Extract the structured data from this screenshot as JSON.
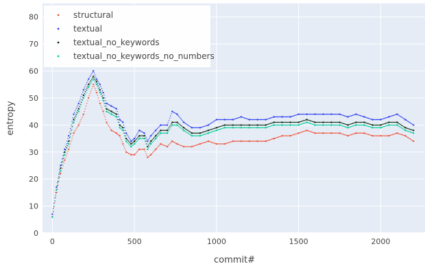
{
  "chart_data": {
    "type": "scatter",
    "xlabel": "commit#",
    "ylabel": "entropy",
    "xlim": [
      -60,
      2270
    ],
    "ylim": [
      0,
      85
    ],
    "x_ticks": [
      0,
      500,
      1000,
      1500,
      2000
    ],
    "y_ticks": [
      0,
      10,
      20,
      30,
      40,
      50,
      60,
      70,
      80
    ],
    "grid": true,
    "legend_position": "top-left",
    "background_color": "#e5ecf6",
    "series": [
      {
        "name": "structural",
        "color": "#ef553b",
        "x": [
          0,
          25,
          50,
          75,
          100,
          130,
          160,
          190,
          220,
          250,
          270,
          290,
          310,
          330,
          360,
          390,
          410,
          430,
          450,
          480,
          500,
          530,
          560,
          580,
          600,
          630,
          660,
          700,
          730,
          760,
          800,
          850,
          900,
          950,
          1000,
          1050,
          1100,
          1150,
          1200,
          1250,
          1300,
          1350,
          1400,
          1450,
          1500,
          1550,
          1600,
          1650,
          1700,
          1750,
          1800,
          1850,
          1900,
          1950,
          2000,
          2050,
          2100,
          2150,
          2200
        ],
        "values": [
          6,
          15,
          22,
          27,
          31,
          37,
          40,
          44,
          50,
          55,
          52,
          48,
          45,
          41,
          38,
          37,
          36,
          33,
          30,
          29,
          29,
          31,
          31,
          28,
          29,
          31,
          33,
          32,
          34,
          33,
          32,
          32,
          33,
          34,
          33,
          33,
          34,
          34,
          34,
          34,
          34,
          35,
          36,
          36,
          37,
          38,
          37,
          37,
          37,
          37,
          36,
          37,
          37,
          36,
          36,
          36,
          37,
          36,
          34
        ]
      },
      {
        "name": "textual",
        "color": "#3040ef",
        "x": [
          0,
          25,
          50,
          75,
          100,
          130,
          160,
          190,
          220,
          250,
          270,
          290,
          310,
          330,
          360,
          390,
          410,
          430,
          450,
          480,
          500,
          530,
          560,
          580,
          600,
          630,
          660,
          700,
          730,
          760,
          800,
          850,
          900,
          950,
          1000,
          1050,
          1100,
          1150,
          1200,
          1250,
          1300,
          1350,
          1400,
          1450,
          1500,
          1550,
          1600,
          1650,
          1700,
          1750,
          1800,
          1850,
          1900,
          1950,
          2000,
          2050,
          2100,
          2150,
          2200
        ],
        "values": [
          7,
          17,
          25,
          31,
          36,
          44,
          48,
          53,
          57,
          60,
          57,
          55,
          52,
          48,
          47,
          46,
          42,
          41,
          37,
          34,
          35,
          38,
          37,
          34,
          36,
          38,
          40,
          40,
          45,
          44,
          41,
          39,
          39,
          40,
          42,
          42,
          42,
          43,
          42,
          42,
          42,
          43,
          43,
          43,
          44,
          44,
          44,
          44,
          44,
          44,
          43,
          44,
          43,
          42,
          42,
          43,
          44,
          42,
          40
        ]
      },
      {
        "name": "textual_no_keywords",
        "color": "#0d2a0d",
        "x": [
          0,
          25,
          50,
          75,
          100,
          130,
          160,
          190,
          220,
          250,
          270,
          290,
          310,
          330,
          360,
          390,
          410,
          430,
          450,
          480,
          500,
          530,
          560,
          580,
          600,
          630,
          660,
          700,
          730,
          760,
          800,
          850,
          900,
          950,
          1000,
          1050,
          1100,
          1150,
          1200,
          1250,
          1300,
          1350,
          1400,
          1450,
          1500,
          1550,
          1600,
          1650,
          1700,
          1750,
          1800,
          1850,
          1900,
          1950,
          2000,
          2050,
          2100,
          2150,
          2200
        ],
        "values": [
          6,
          16,
          24,
          30,
          34,
          42,
          46,
          51,
          55,
          58,
          56,
          53,
          50,
          46,
          45,
          44,
          40,
          39,
          35,
          33,
          34,
          36,
          36,
          32,
          34,
          36,
          38,
          38,
          41,
          41,
          39,
          37,
          37,
          38,
          39,
          40,
          40,
          40,
          40,
          40,
          40,
          41,
          41,
          41,
          41,
          42,
          41,
          41,
          41,
          41,
          40,
          41,
          41,
          40,
          40,
          41,
          41,
          39,
          38
        ]
      },
      {
        "name": "textual_no_keywords_no_numbers",
        "color": "#00cc96",
        "x": [
          0,
          25,
          50,
          75,
          100,
          130,
          160,
          190,
          220,
          250,
          270,
          290,
          310,
          330,
          360,
          390,
          410,
          430,
          450,
          480,
          500,
          530,
          560,
          580,
          600,
          630,
          660,
          700,
          730,
          760,
          800,
          850,
          900,
          950,
          1000,
          1050,
          1100,
          1150,
          1200,
          1250,
          1300,
          1350,
          1400,
          1450,
          1500,
          1550,
          1600,
          1650,
          1700,
          1750,
          1800,
          1850,
          1900,
          1950,
          2000,
          2050,
          2100,
          2150,
          2200
        ],
        "values": [
          6,
          16,
          23,
          29,
          33,
          41,
          45,
          50,
          54,
          57,
          55,
          52,
          49,
          45,
          44,
          43,
          39,
          38,
          34,
          32,
          33,
          35,
          35,
          31,
          33,
          35,
          37,
          37,
          40,
          40,
          38,
          36,
          36,
          37,
          38,
          39,
          39,
          39,
          39,
          39,
          39,
          40,
          40,
          40,
          40,
          41,
          40,
          40,
          40,
          40,
          39,
          40,
          40,
          39,
          39,
          40,
          40,
          38,
          37
        ]
      }
    ]
  }
}
